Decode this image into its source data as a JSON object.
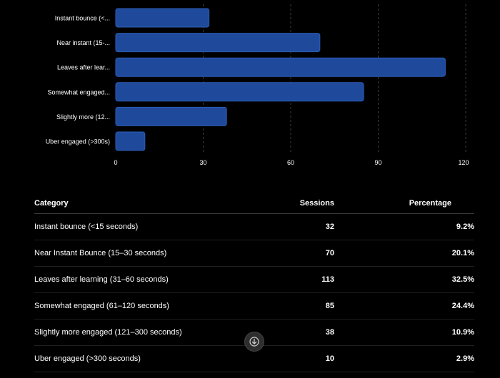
{
  "chart_data": {
    "type": "bar",
    "orientation": "horizontal",
    "categories": [
      "Instant bounce (<...",
      "Near instant (15-...",
      "Leaves after lear...",
      "Somewhat engaged...",
      "Slightly more (12...",
      "Uber engaged (>300s)"
    ],
    "values": [
      32,
      70,
      113,
      85,
      38,
      10
    ],
    "xlim": [
      0,
      120
    ],
    "x_ticks": [
      0,
      30,
      60,
      90,
      120
    ],
    "grid": "vertical dashed",
    "bar_color": "#1f4a9c",
    "title": "",
    "xlabel": "",
    "ylabel": ""
  },
  "table": {
    "headers": {
      "category": "Category",
      "sessions": "Sessions",
      "percentage": "Percentage"
    },
    "rows": [
      {
        "category": "Instant bounce (<15 seconds)",
        "sessions": "32",
        "percentage": "9.2%"
      },
      {
        "category": "Near Instant Bounce (15–30 seconds)",
        "sessions": "70",
        "percentage": "20.1%"
      },
      {
        "category": "Leaves after learning (31–60 seconds)",
        "sessions": "113",
        "percentage": "32.5%"
      },
      {
        "category": "Somewhat engaged (61–120 seconds)",
        "sessions": "85",
        "percentage": "24.4%"
      },
      {
        "category": "Slightly more engaged (121–300 seconds)",
        "sessions": "38",
        "percentage": "10.9%"
      },
      {
        "category": "Uber engaged (>300 seconds)",
        "sessions": "10",
        "percentage": "2.9%"
      }
    ]
  },
  "scroll_button": {
    "icon": "arrow-down-icon"
  },
  "colors": {
    "background": "#000000",
    "bar": "#1f4a9c",
    "bar_border": "#2d5cb5",
    "text": "#ffffff",
    "grid": "#3a3a3a"
  }
}
